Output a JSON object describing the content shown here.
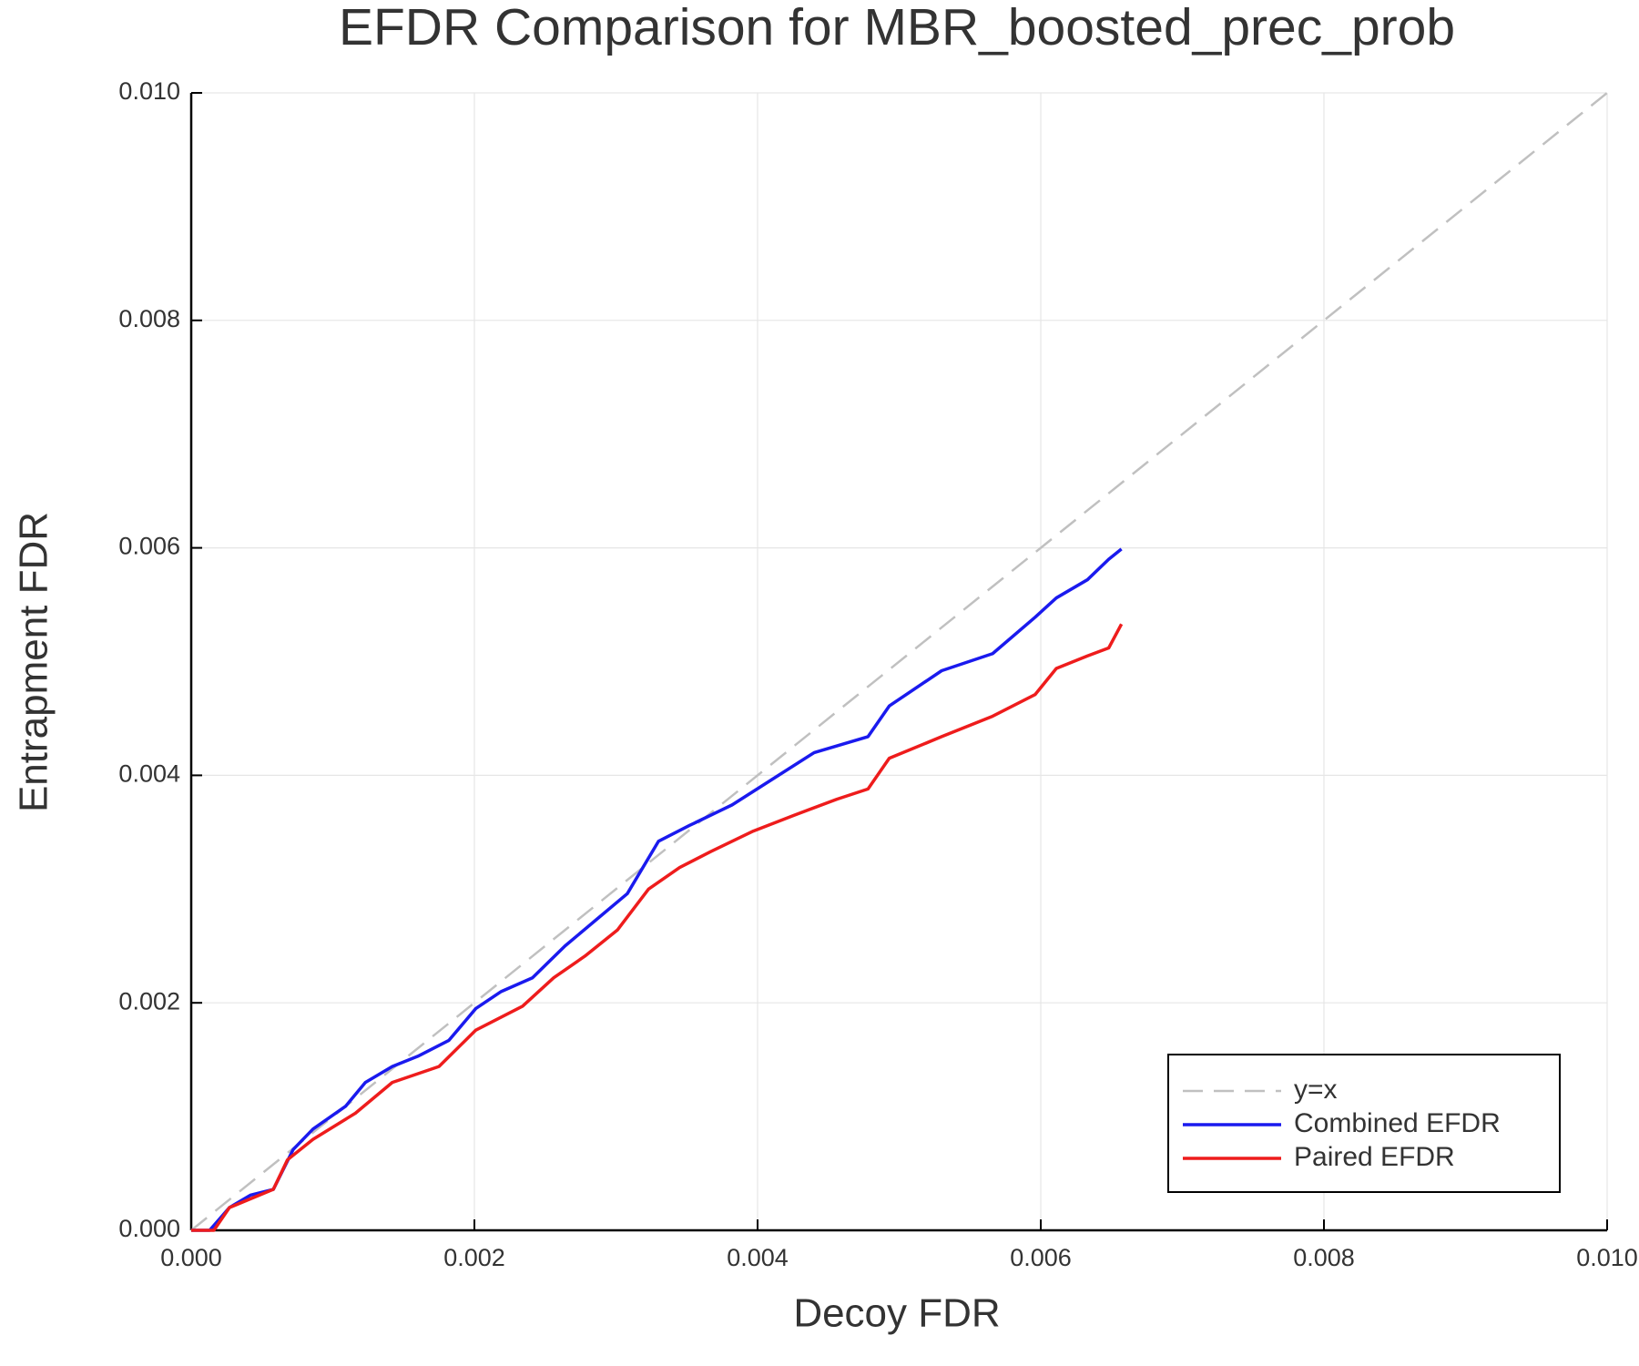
{
  "chart_data": {
    "type": "line",
    "title": "EFDR Comparison for MBR_boosted_prec_prob",
    "xlabel": "Decoy FDR",
    "ylabel": "Entrapment FDR",
    "xlim": [
      0,
      0.01
    ],
    "ylim": [
      0,
      0.01
    ],
    "xticks": [
      {
        "value": 0,
        "label": "0.000"
      },
      0.002,
      0.004,
      0.006,
      0.008,
      {
        "value": 0.01,
        "label": "0.010"
      }
    ],
    "yticks": [
      {
        "value": 0,
        "label": "0.000"
      },
      0.002,
      0.004,
      0.006,
      0.008,
      {
        "value": 0.01,
        "label": "0.010"
      }
    ],
    "grid": true,
    "legend": "bottom right",
    "series": [
      {
        "name": "y=x",
        "color": "#c0c0c0",
        "style": "dashed",
        "x": [
          0,
          0.01
        ],
        "values": [
          0,
          0.01
        ]
      },
      {
        "name": "Combined EFDR",
        "color": "#1a1aee",
        "style": "solid",
        "x": [
          0,
          0.00013,
          0.00027,
          0.00042,
          0.00058,
          0.00072,
          0.00086,
          0.00109,
          0.00123,
          0.00142,
          0.0016,
          0.00182,
          0.00201,
          0.00219,
          0.00241,
          0.00264,
          0.00286,
          0.00308,
          0.0033,
          0.00352,
          0.00382,
          0.00411,
          0.0044,
          0.00478,
          0.00493,
          0.0053,
          0.00566,
          0.00596,
          0.00611,
          0.00633,
          0.00648,
          0.00657
        ],
        "values": [
          0,
          0,
          0.0002,
          0.00031,
          0.00036,
          0.00071,
          0.00089,
          0.00109,
          0.0013,
          0.00144,
          0.00153,
          0.00167,
          0.00195,
          0.0021,
          0.00222,
          0.0025,
          0.00273,
          0.00296,
          0.00342,
          0.00356,
          0.00374,
          0.00397,
          0.0042,
          0.00434,
          0.00461,
          0.00492,
          0.00507,
          0.00539,
          0.00556,
          0.00572,
          0.0059,
          0.00599
        ]
      },
      {
        "name": "Paired EFDR",
        "color": "#ee1c1c",
        "style": "solid",
        "x": [
          0,
          0.00016,
          0.00027,
          0.00058,
          0.00068,
          0.00086,
          0.00116,
          0.00142,
          0.00175,
          0.00201,
          0.00234,
          0.00256,
          0.00278,
          0.00301,
          0.00323,
          0.00345,
          0.00367,
          0.00397,
          0.00426,
          0.00456,
          0.00478,
          0.00493,
          0.0053,
          0.00566,
          0.00596,
          0.00611,
          0.00633,
          0.00648,
          0.00657
        ],
        "values": [
          0,
          0,
          0.0002,
          0.00036,
          0.00062,
          0.0008,
          0.00103,
          0.0013,
          0.00144,
          0.00176,
          0.00197,
          0.00222,
          0.00241,
          0.00264,
          0.003,
          0.00319,
          0.00333,
          0.00351,
          0.00365,
          0.00379,
          0.00388,
          0.00415,
          0.00434,
          0.00452,
          0.00471,
          0.00494,
          0.00505,
          0.00512,
          0.00533
        ]
      }
    ]
  }
}
